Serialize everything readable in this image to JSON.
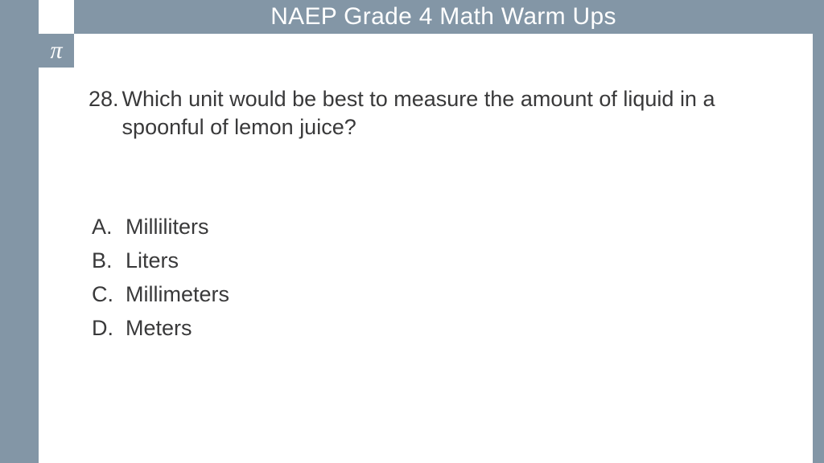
{
  "colors": {
    "panel": "#8396a6",
    "background": "#ffffff",
    "title_text": "#ffffff",
    "body_text": "#39393a"
  },
  "typography": {
    "title_fontsize": 30,
    "body_fontsize": 27,
    "title_weight": 300,
    "body_weight": 400
  },
  "header": {
    "title": "NAEP Grade 4 Math Warm Ups",
    "icon_symbol": "π"
  },
  "question": {
    "number": "28.",
    "text": "Which unit would be best to measure the amount of liquid in a spoonful of lemon juice?"
  },
  "options": [
    {
      "letter": "A.",
      "text": "Milliliters"
    },
    {
      "letter": "B.",
      "text": "Liters"
    },
    {
      "letter": "C.",
      "text": "Millimeters"
    },
    {
      "letter": "D.",
      "text": "Meters"
    }
  ]
}
